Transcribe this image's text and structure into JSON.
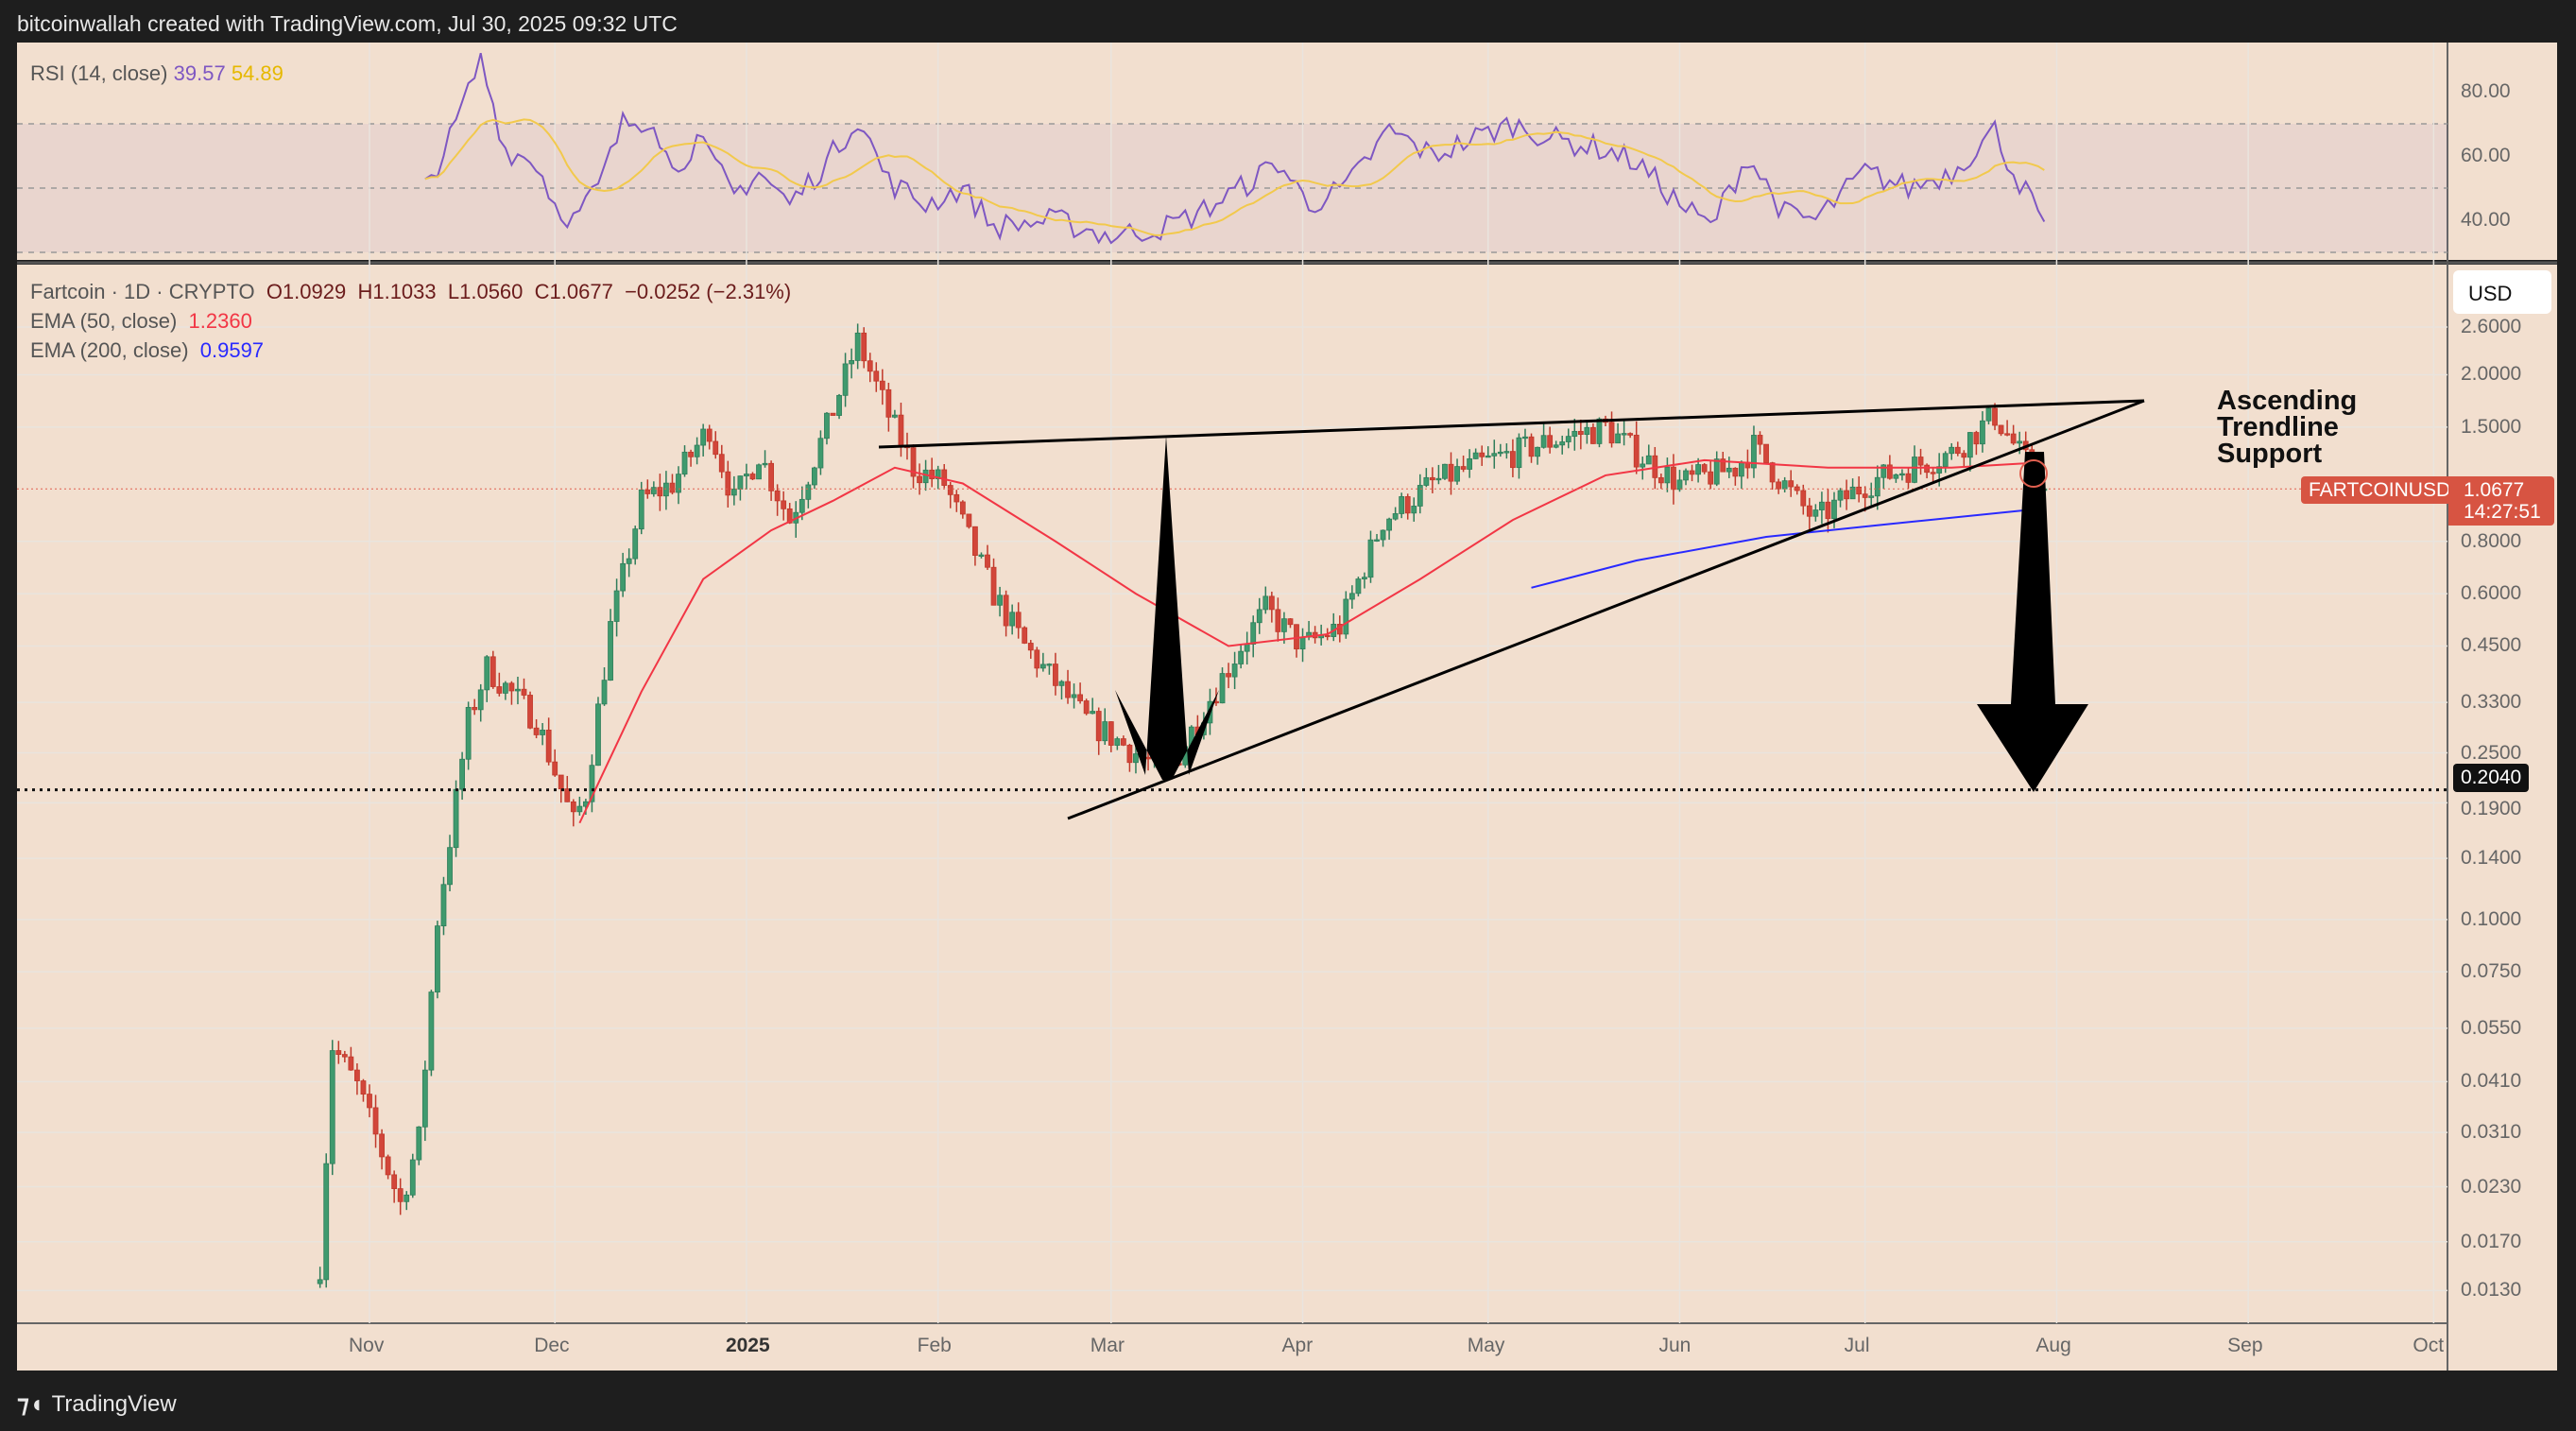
{
  "topbar": {
    "text": "bitcoinwallah created with TradingView.com, Jul 30, 2025 09:32 UTC"
  },
  "rsi": {
    "label": "RSI (14, close)",
    "value": "39.57",
    "ma_value": "54.89",
    "ticks": [
      "80.00",
      "60.00",
      "40.00"
    ],
    "color": "#7e57c2",
    "ma_color": "#f2c94c"
  },
  "legend": {
    "symbol": "Fartcoin · 1D · CRYPTO",
    "open": "O1.0929",
    "high": "H1.1033",
    "low": "L1.0560",
    "close": "C1.0677",
    "change": "−0.0252 (−2.31%)",
    "ema50_label": "EMA (50, close)",
    "ema50_value": "1.2360",
    "ema50_color": "#f23645",
    "ema200_label": "EMA (200, close)",
    "ema200_value": "0.9597",
    "ema200_color": "#2962ff"
  },
  "currency": "USD",
  "price_tag": {
    "symbol": "FARTCOINUSD",
    "price": "1.0677",
    "countdown": "14:27:51"
  },
  "level_tag": "0.2040",
  "annotation": {
    "line1": "Ascending",
    "line2": "Trendline",
    "line3": "Support"
  },
  "footer": {
    "brand": "TradingView"
  },
  "chart_data": {
    "type": "candlestick",
    "yscale": "log",
    "y_ticks": [
      "2.6000",
      "2.0000",
      "1.5000",
      "1.0677",
      "0.8000",
      "0.6000",
      "0.4500",
      "0.3300",
      "0.2500",
      "0.1900",
      "0.1400",
      "0.1000",
      "0.0750",
      "0.0550",
      "0.0410",
      "0.0310",
      "0.0230",
      "0.0170",
      "0.0130"
    ],
    "x_ticks": [
      [
        "Nov",
        "2024-11-01"
      ],
      [
        "Dec",
        "2024-12-01"
      ],
      [
        "2025",
        "2025-01-01"
      ],
      [
        "Feb",
        "2025-02-01"
      ],
      [
        "Mar",
        "2025-03-01"
      ],
      [
        "Apr",
        "2025-04-01"
      ],
      [
        "May",
        "2025-05-01"
      ],
      [
        "Jun",
        "2025-06-01"
      ],
      [
        "Jul",
        "2025-07-01"
      ],
      [
        "Aug",
        "2025-08-01"
      ],
      [
        "Sep",
        "2025-09-01"
      ],
      [
        "Oct",
        "2025-10-01"
      ]
    ],
    "close_path": [
      [
        "2024-10-24",
        0.015
      ],
      [
        "2024-10-26",
        0.05
      ],
      [
        "2024-10-30",
        0.04
      ],
      [
        "2024-11-06",
        0.021
      ],
      [
        "2024-11-09",
        0.03
      ],
      [
        "2024-11-12",
        0.1
      ],
      [
        "2024-11-17",
        0.3
      ],
      [
        "2024-11-20",
        0.4
      ],
      [
        "2024-11-28",
        0.3
      ],
      [
        "2024-12-04",
        0.17
      ],
      [
        "2024-12-06",
        0.2
      ],
      [
        "2024-12-10",
        0.5
      ],
      [
        "2024-12-15",
        1.0
      ],
      [
        "2024-12-20",
        1.1
      ],
      [
        "2024-12-26",
        1.5
      ],
      [
        "2024-12-30",
        1.0
      ],
      [
        "2025-01-03",
        1.3
      ],
      [
        "2025-01-08",
        0.9
      ],
      [
        "2025-01-14",
        1.5
      ],
      [
        "2025-01-19",
        2.4
      ],
      [
        "2025-01-24",
        1.6
      ],
      [
        "2025-01-28",
        1.2
      ],
      [
        "2025-02-02",
        1.1
      ],
      [
        "2025-02-10",
        0.6
      ],
      [
        "2025-02-15",
        0.45
      ],
      [
        "2025-02-25",
        0.3
      ],
      [
        "2025-03-05",
        0.25
      ],
      [
        "2025-03-10",
        0.22
      ],
      [
        "2025-03-15",
        0.3
      ],
      [
        "2025-03-22",
        0.45
      ],
      [
        "2025-03-26",
        0.55
      ],
      [
        "2025-04-01",
        0.45
      ],
      [
        "2025-04-07",
        0.5
      ],
      [
        "2025-04-14",
        0.9
      ],
      [
        "2025-04-22",
        1.1
      ],
      [
        "2025-04-28",
        1.2
      ],
      [
        "2025-05-05",
        1.3
      ],
      [
        "2025-05-12",
        1.4
      ],
      [
        "2025-05-20",
        1.5
      ],
      [
        "2025-05-25",
        1.3
      ],
      [
        "2025-06-01",
        1.1
      ],
      [
        "2025-06-10",
        1.2
      ],
      [
        "2025-06-13",
        1.35
      ],
      [
        "2025-06-20",
        1.0
      ],
      [
        "2025-06-23",
        0.9
      ],
      [
        "2025-07-01",
        1.1
      ],
      [
        "2025-07-08",
        1.2
      ],
      [
        "2025-07-15",
        1.3
      ],
      [
        "2025-07-22",
        1.6
      ],
      [
        "2025-07-26",
        1.3
      ],
      [
        "2025-07-30",
        1.0677
      ]
    ],
    "ema50_path": [
      [
        "2024-12-05",
        0.17
      ],
      [
        "2024-12-15",
        0.35
      ],
      [
        "2024-12-25",
        0.65
      ],
      [
        "2025-01-05",
        0.85
      ],
      [
        "2025-01-15",
        1.0
      ],
      [
        "2025-01-25",
        1.2
      ],
      [
        "2025-02-05",
        1.1
      ],
      [
        "2025-02-20",
        0.8
      ],
      [
        "2025-03-05",
        0.6
      ],
      [
        "2025-03-20",
        0.45
      ],
      [
        "2025-04-05",
        0.48
      ],
      [
        "2025-04-20",
        0.65
      ],
      [
        "2025-05-05",
        0.9
      ],
      [
        "2025-05-20",
        1.15
      ],
      [
        "2025-06-05",
        1.25
      ],
      [
        "2025-06-25",
        1.2
      ],
      [
        "2025-07-15",
        1.2
      ],
      [
        "2025-07-30",
        1.236
      ]
    ],
    "ema200_path": [
      [
        "2025-05-08",
        0.62
      ],
      [
        "2025-05-25",
        0.72
      ],
      [
        "2025-06-15",
        0.82
      ],
      [
        "2025-07-05",
        0.88
      ],
      [
        "2025-07-30",
        0.9597
      ]
    ],
    "horizontal_level": 0.204,
    "rsi_path": [
      [
        "2024-11-10",
        50
      ],
      [
        "2024-11-14",
        65
      ],
      [
        "2024-11-19",
        90
      ],
      [
        "2024-11-23",
        62
      ],
      [
        "2024-11-28",
        58
      ],
      [
        "2024-12-01",
        45
      ],
      [
        "2024-12-04",
        40
      ],
      [
        "2024-12-08",
        50
      ],
      [
        "2024-12-12",
        70
      ],
      [
        "2024-12-17",
        72
      ],
      [
        "2024-12-20",
        55
      ],
      [
        "2024-12-24",
        65
      ],
      [
        "2024-12-30",
        48
      ],
      [
        "2025-01-03",
        55
      ],
      [
        "2025-01-08",
        45
      ],
      [
        "2025-01-14",
        58
      ],
      [
        "2025-01-19",
        72
      ],
      [
        "2025-01-24",
        52
      ],
      [
        "2025-01-30",
        45
      ],
      [
        "2025-02-05",
        50
      ],
      [
        "2025-02-10",
        38
      ],
      [
        "2025-02-20",
        40
      ],
      [
        "2025-03-01",
        35
      ],
      [
        "2025-03-10",
        38
      ],
      [
        "2025-03-15",
        42
      ],
      [
        "2025-03-22",
        50
      ],
      [
        "2025-03-28",
        58
      ],
      [
        "2025-04-02",
        45
      ],
      [
        "2025-04-08",
        50
      ],
      [
        "2025-04-15",
        68
      ],
      [
        "2025-04-22",
        60
      ],
      [
        "2025-04-28",
        65
      ],
      [
        "2025-05-05",
        70
      ],
      [
        "2025-05-12",
        65
      ],
      [
        "2025-05-20",
        62
      ],
      [
        "2025-05-25",
        58
      ],
      [
        "2025-06-01",
        45
      ],
      [
        "2025-06-06",
        38
      ],
      [
        "2025-06-12",
        60
      ],
      [
        "2025-06-18",
        42
      ],
      [
        "2025-06-23",
        40
      ],
      [
        "2025-07-01",
        55
      ],
      [
        "2025-07-08",
        50
      ],
      [
        "2025-07-15",
        55
      ],
      [
        "2025-07-22",
        68
      ],
      [
        "2025-07-25",
        55
      ],
      [
        "2025-07-30",
        39.57
      ]
    ],
    "rsi_band": [
      30,
      70
    ]
  }
}
